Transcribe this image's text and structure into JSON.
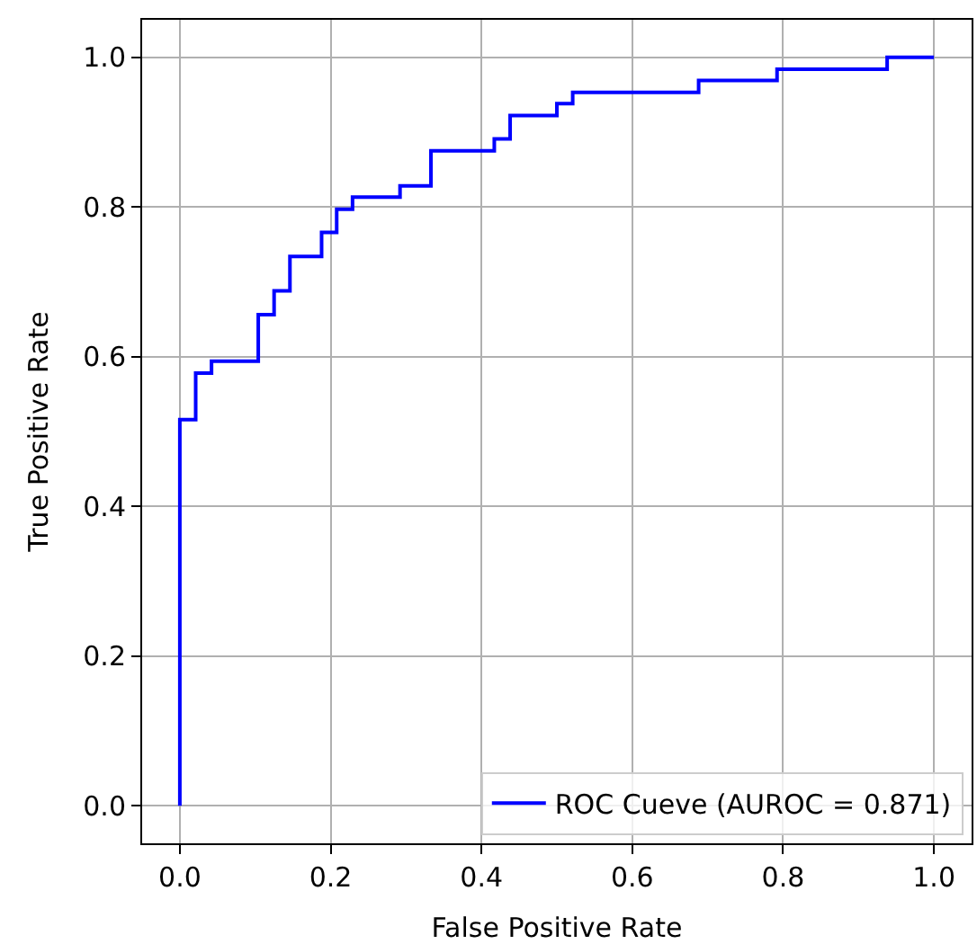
{
  "chart_data": {
    "type": "step",
    "xlabel": "False Positive Rate",
    "ylabel": "True Positive Rate",
    "x": [
      0,
      0,
      0.021,
      0.042,
      0.104,
      0.125,
      0.146,
      0.188,
      0.208,
      0.229,
      0.292,
      0.333,
      0.417,
      0.438,
      0.5,
      0.521,
      0.688,
      0.792,
      0.938,
      1
    ],
    "series": [
      {
        "name": "ROC Cueve (AUROC = 0.871)",
        "color": "#0000ff",
        "values": [
          0,
          0.516,
          0.578,
          0.594,
          0.656,
          0.688,
          0.734,
          0.766,
          0.797,
          0.813,
          0.828,
          0.875,
          0.891,
          0.922,
          0.938,
          0.953,
          0.969,
          0.984,
          1,
          1
        ]
      }
    ],
    "xlim": [
      -0.05,
      1.05
    ],
    "ylim": [
      -0.05,
      1.05
    ],
    "xticks": [
      {
        "value": 0,
        "label": "0.0"
      },
      {
        "value": 0.2,
        "label": "0.2"
      },
      {
        "value": 0.4,
        "label": "0.4"
      },
      {
        "value": 0.6,
        "label": "0.6"
      },
      {
        "value": 0.8,
        "label": "0.8"
      },
      {
        "value": 1,
        "label": "1.0"
      }
    ],
    "yticks": [
      {
        "value": 0,
        "label": "0.0"
      },
      {
        "value": 0.2,
        "label": "0.2"
      },
      {
        "value": 0.4,
        "label": "0.4"
      },
      {
        "value": 0.6,
        "label": "0.6"
      },
      {
        "value": 0.8,
        "label": "0.8"
      },
      {
        "value": 1,
        "label": "1.0"
      }
    ],
    "grid": true,
    "legend": "bottom right",
    "marker": "none",
    "line_style": "solid"
  }
}
